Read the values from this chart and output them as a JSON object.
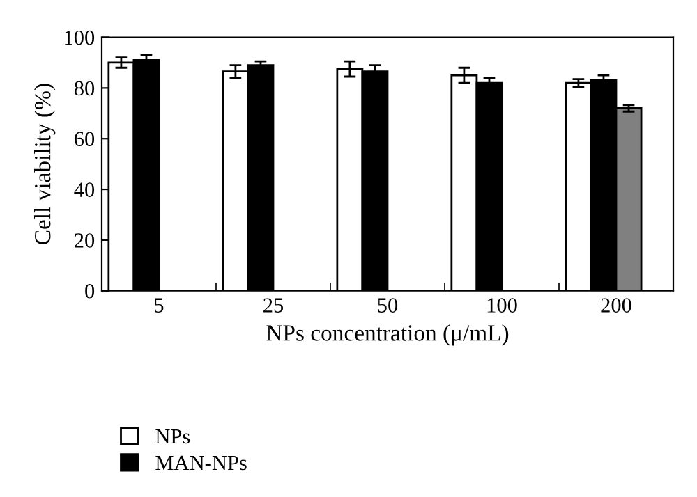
{
  "chart_data": {
    "type": "bar",
    "xlabel": "NPs concentration (μ/mL)",
    "ylabel": "Cell viability (%)",
    "categories": [
      "5",
      "25",
      "50",
      "100",
      "200"
    ],
    "series": [
      {
        "name": "NPs",
        "color": "#ffffff",
        "values": [
          90,
          86.5,
          87.5,
          85,
          82
        ],
        "errors": [
          2,
          2.5,
          3,
          3,
          1.5
        ]
      },
      {
        "name": "MAN-NPs",
        "color": "#000000",
        "values": [
          91,
          89,
          86.5,
          82,
          83
        ],
        "errors": [
          2,
          1.5,
          2.5,
          2,
          2
        ]
      },
      {
        "color": "#808080",
        "values": [
          null,
          null,
          null,
          null,
          72
        ],
        "errors": [
          null,
          null,
          null,
          null,
          1.3
        ]
      }
    ],
    "ylim": [
      0,
      100
    ],
    "yticks": [
      0,
      20,
      40,
      60,
      80,
      100
    ],
    "legend": "bottom left"
  }
}
